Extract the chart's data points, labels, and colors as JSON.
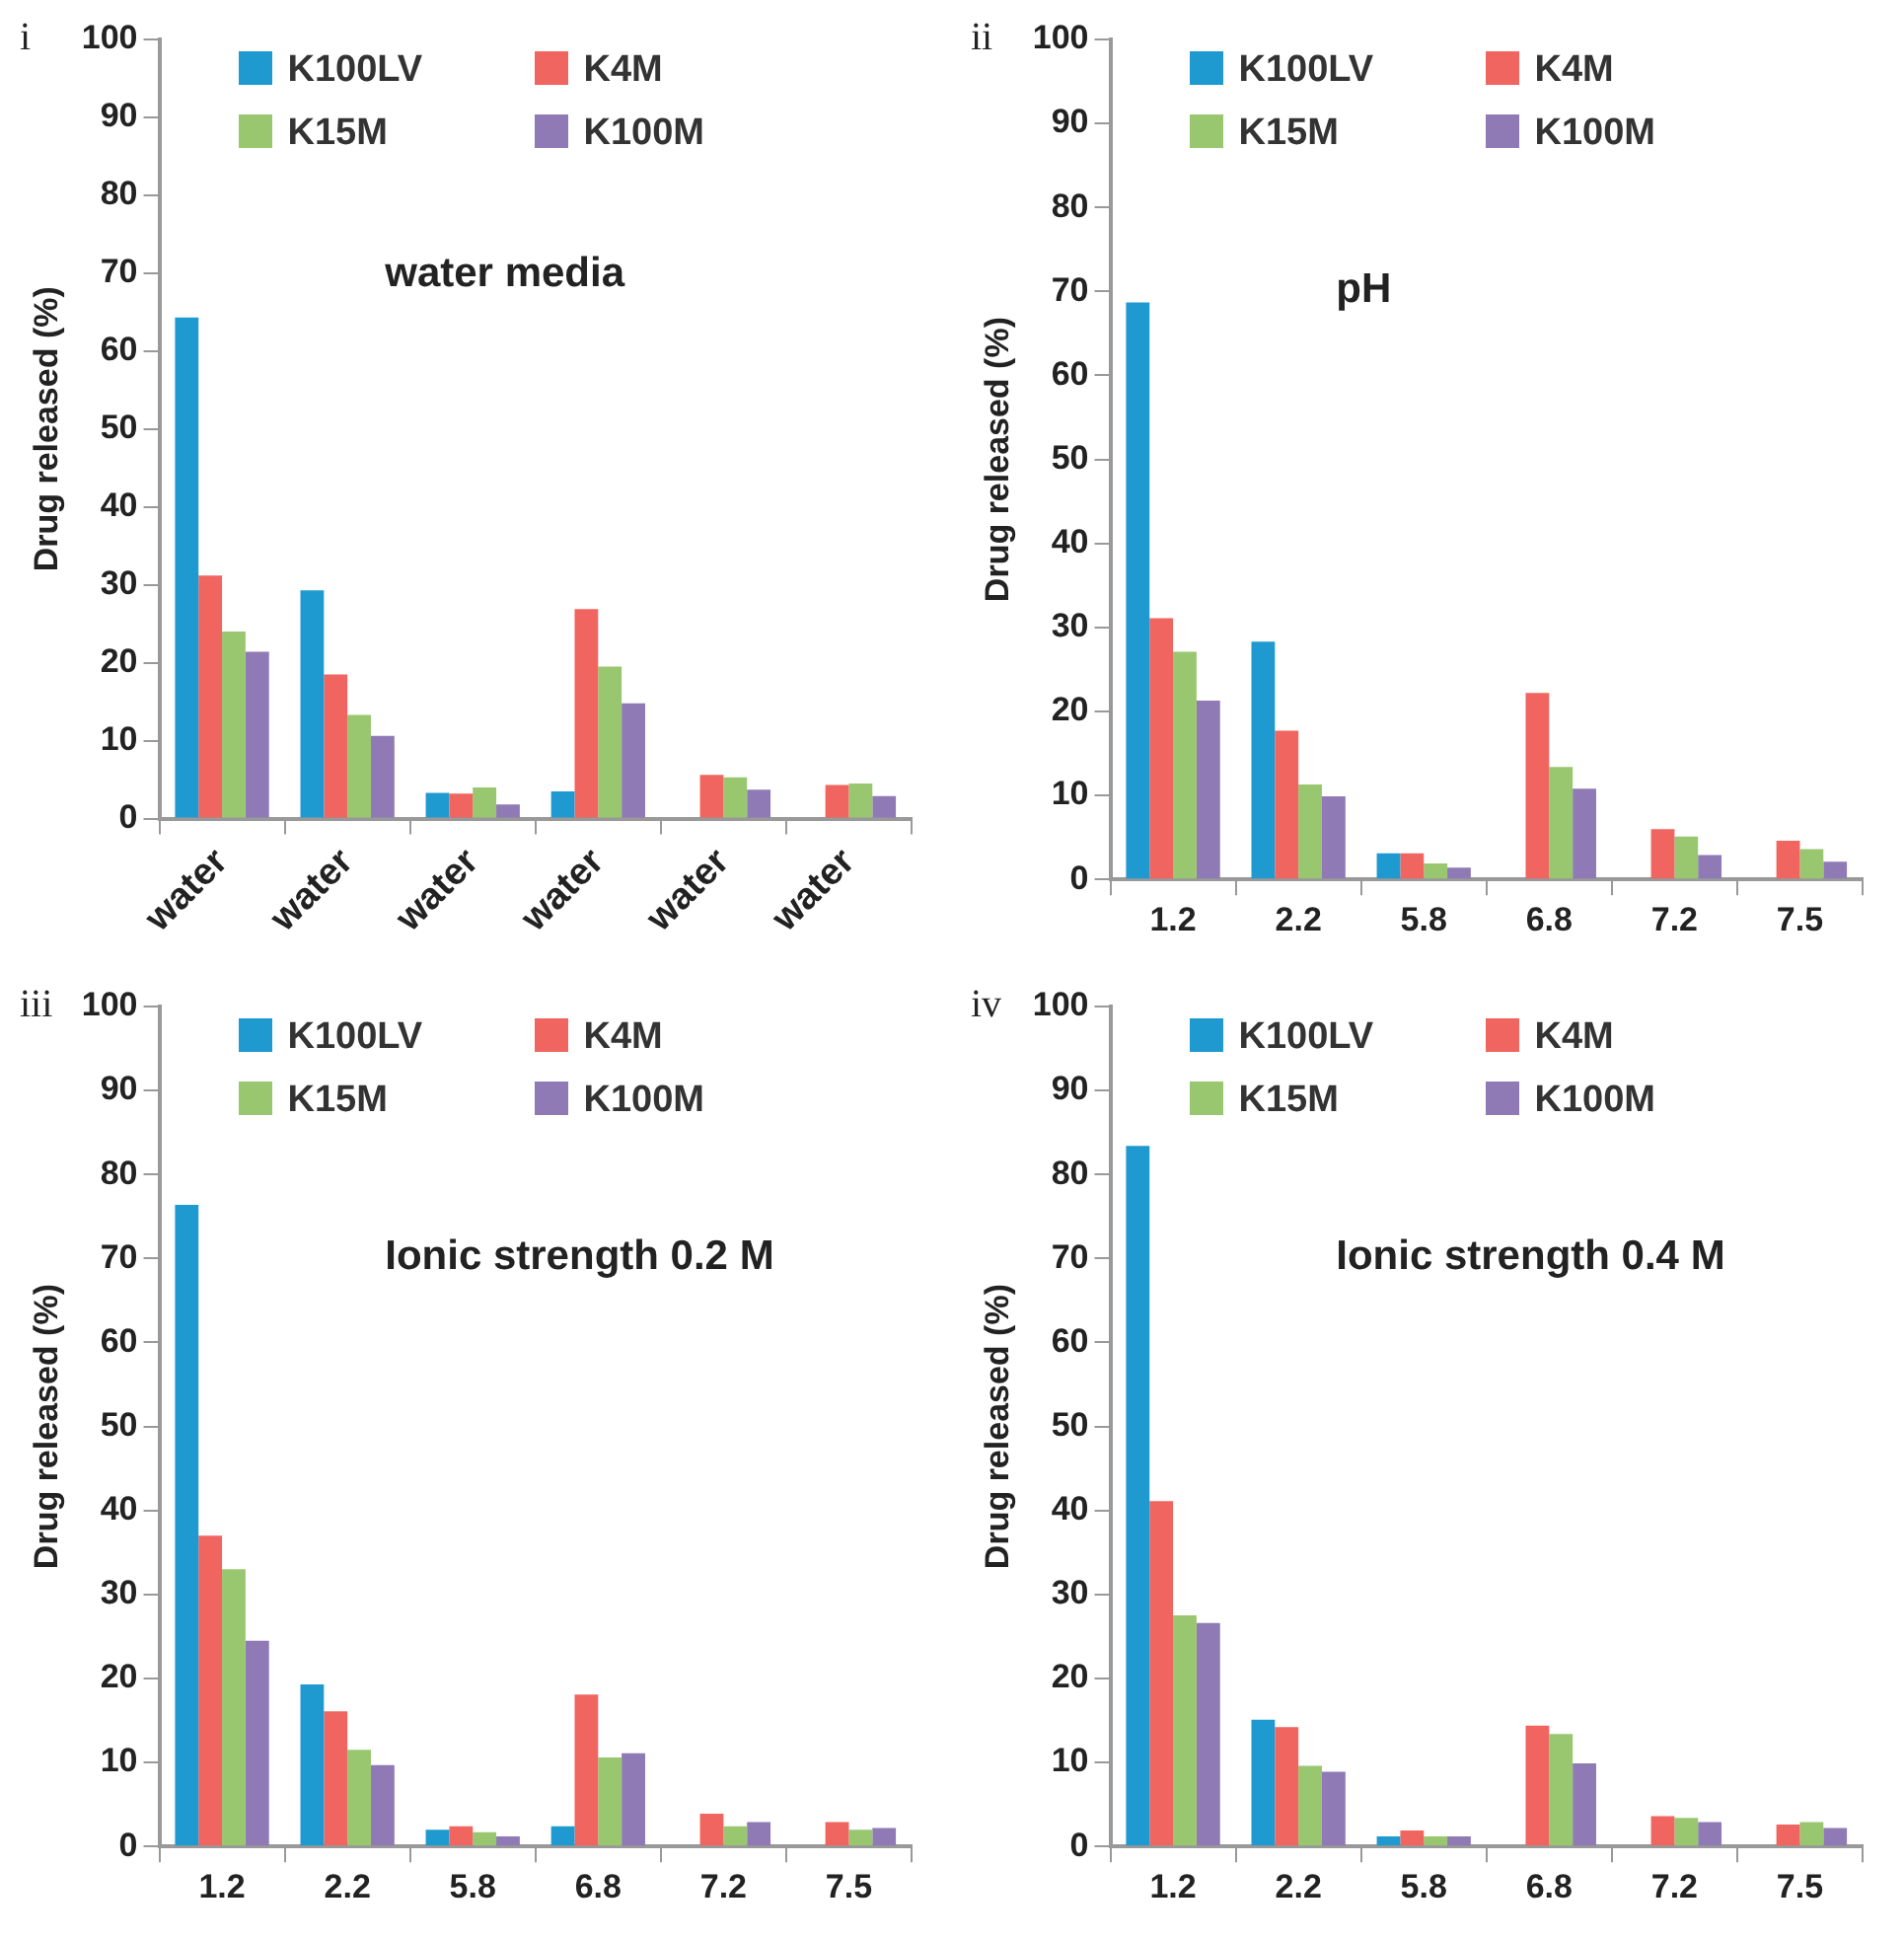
{
  "chart_data": [
    {
      "type": "bar",
      "title": "i",
      "ylabel": "Drug released (%)",
      "annotations": [
        "water media"
      ],
      "categories": [
        "water",
        "water",
        "water",
        "water",
        "water",
        "water"
      ],
      "ylim": [
        0,
        100
      ],
      "yticks": [
        0,
        10,
        20,
        30,
        40,
        50,
        60,
        70,
        80,
        90,
        100
      ],
      "grid": false,
      "legend": "top",
      "series": [
        {
          "name": "K100LV",
          "color": "#1f9ad0",
          "values": [
            64.3,
            29.3,
            3.3,
            3.5,
            null,
            null
          ]
        },
        {
          "name": "K4M",
          "color": "#f0655f",
          "values": [
            31.2,
            18.5,
            3.2,
            26.9,
            5.6,
            4.3
          ]
        },
        {
          "name": "K15M",
          "color": "#99c76f",
          "values": [
            24,
            13.3,
            4,
            19.5,
            5.3,
            4.5
          ]
        },
        {
          "name": "K100M",
          "color": "#8f7ab5",
          "values": [
            21.4,
            10.6,
            1.8,
            14.8,
            3.7,
            2.9
          ]
        }
      ]
    },
    {
      "type": "bar",
      "title": "ii",
      "ylabel": "Drug released (%)",
      "annotations": [
        "pH"
      ],
      "categories": [
        "1.2",
        "2.2",
        "5.8",
        "6.8",
        "7.2",
        "7.5"
      ],
      "ylim": [
        0,
        100
      ],
      "yticks": [
        0,
        10,
        20,
        30,
        40,
        50,
        60,
        70,
        80,
        90,
        100
      ],
      "grid": false,
      "legend": "top",
      "series": [
        {
          "name": "K100LV",
          "color": "#1f9ad0",
          "values": [
            68.7,
            28.3,
            3.1,
            null,
            null,
            null
          ]
        },
        {
          "name": "K4M",
          "color": "#f0655f",
          "values": [
            31.1,
            17.7,
            3.1,
            22.2,
            6,
            4.6
          ]
        },
        {
          "name": "K15M",
          "color": "#99c76f",
          "values": [
            27.1,
            11.3,
            1.9,
            13.4,
            5.1,
            3.6
          ]
        },
        {
          "name": "K100M",
          "color": "#8f7ab5",
          "values": [
            21.3,
            9.9,
            1.4,
            10.8,
            2.9,
            2.1
          ]
        }
      ]
    },
    {
      "type": "bar",
      "title": "iii",
      "ylabel": "Drug released (%)",
      "annotations": [
        "Ionic strength 0.2 M"
      ],
      "categories": [
        "1.2",
        "2.2",
        "5.8",
        "6.8",
        "7.2",
        "7.5"
      ],
      "ylim": [
        0,
        100
      ],
      "yticks": [
        0,
        10,
        20,
        30,
        40,
        50,
        60,
        70,
        80,
        90,
        100
      ],
      "grid": false,
      "legend": "top",
      "series": [
        {
          "name": "K100LV",
          "color": "#1f9ad0",
          "values": [
            76.4,
            19.3,
            2,
            2.4,
            null,
            null
          ]
        },
        {
          "name": "K4M",
          "color": "#f0655f",
          "values": [
            37,
            16.1,
            2.4,
            18.1,
            3.9,
            2.9
          ]
        },
        {
          "name": "K15M",
          "color": "#99c76f",
          "values": [
            33,
            11.5,
            1.7,
            10.6,
            2.4,
            2
          ]
        },
        {
          "name": "K100M",
          "color": "#8f7ab5",
          "values": [
            24.5,
            9.7,
            1.2,
            11.1,
            2.9,
            2.2
          ]
        }
      ]
    },
    {
      "type": "bar",
      "title": "iv",
      "ylabel": "Drug released (%)",
      "annotations": [
        "Ionic strength 0.4 M"
      ],
      "categories": [
        "1.2",
        "2.2",
        "5.8",
        "6.8",
        "7.2",
        "7.5"
      ],
      "ylim": [
        0,
        100
      ],
      "yticks": [
        0,
        10,
        20,
        30,
        40,
        50,
        60,
        70,
        80,
        90,
        100
      ],
      "grid": false,
      "legend": "top",
      "series": [
        {
          "name": "K100LV",
          "color": "#1f9ad0",
          "values": [
            83.4,
            15.1,
            1.2,
            null,
            null,
            null
          ]
        },
        {
          "name": "K4M",
          "color": "#f0655f",
          "values": [
            41.1,
            14.2,
            1.9,
            14.4,
            3.6,
            2.6
          ]
        },
        {
          "name": "K15M",
          "color": "#99c76f",
          "values": [
            27.5,
            9.6,
            1.2,
            13.4,
            3.4,
            2.9
          ]
        },
        {
          "name": "K100M",
          "color": "#8f7ab5",
          "values": [
            26.6,
            8.9,
            1.2,
            9.9,
            2.9,
            2.2
          ]
        }
      ]
    }
  ]
}
